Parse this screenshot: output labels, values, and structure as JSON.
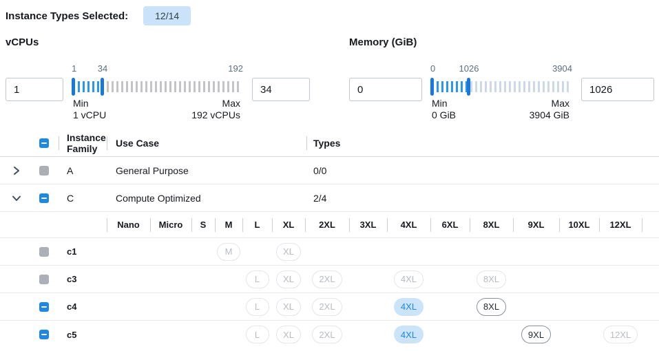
{
  "colors": {
    "accent_blue": "#1f87e8",
    "badge_bg": "#cbe3fa",
    "selected_pill_bg": "#cce4f9",
    "disabled_checkbox_gray": "#abafb6",
    "tick_inactive_vcpu": "#c3c3c9",
    "tick_inactive_memory": "#cdd9e9",
    "tick_active": "#2b96ef"
  },
  "topbar": {
    "label": "Instance Types Selected:",
    "badge": "12/14"
  },
  "filters": {
    "vcpus": {
      "title": "vCPUs",
      "min_input": "1",
      "max_input": "34",
      "scale": {
        "low": "1",
        "current": "34",
        "high": "192"
      },
      "min_label": "Min",
      "min_detail": "1 vCPU",
      "max_label": "Max",
      "max_detail": "192 vCPUs"
    },
    "memory": {
      "title": "Memory (GiB)",
      "min_input": "0",
      "max_input": "1026",
      "scale": {
        "low": "0",
        "current": "1026",
        "high": "3904"
      },
      "min_label": "Min",
      "min_detail": "0 GiB",
      "max_label": "Max",
      "max_detail": "3904 GiB"
    }
  },
  "table": {
    "columns": {
      "family": "Instance Family",
      "use_case": "Use Case",
      "types": "Types"
    },
    "header_checkbox": "indeterminate",
    "size_columns": [
      "Nano",
      "Micro",
      "S",
      "M",
      "L",
      "XL",
      "2XL",
      "3XL",
      "4XL",
      "6XL",
      "8XL",
      "9XL",
      "10XL",
      "12XL"
    ],
    "groups": [
      {
        "family": "A",
        "use_case": "General Purpose",
        "types": "0/0",
        "expanded": false,
        "checkbox": "disabled",
        "children": []
      },
      {
        "family": "C",
        "use_case": "Compute Optimized",
        "types": "2/4",
        "expanded": true,
        "checkbox": "indeterminate",
        "children": [
          {
            "name": "c1",
            "checkbox": "disabled",
            "sizes": [
              {
                "size": "M",
                "state": "disabled"
              },
              {
                "size": "XL",
                "state": "disabled"
              }
            ]
          },
          {
            "name": "c3",
            "checkbox": "disabled",
            "sizes": [
              {
                "size": "L",
                "state": "disabled"
              },
              {
                "size": "XL",
                "state": "disabled"
              },
              {
                "size": "2XL",
                "state": "disabled"
              },
              {
                "size": "4XL",
                "state": "disabled"
              },
              {
                "size": "8XL",
                "state": "disabled"
              }
            ]
          },
          {
            "name": "c4",
            "checkbox": "indeterminate",
            "sizes": [
              {
                "size": "L",
                "state": "disabled"
              },
              {
                "size": "XL",
                "state": "disabled"
              },
              {
                "size": "2XL",
                "state": "disabled"
              },
              {
                "size": "4XL",
                "state": "selected"
              },
              {
                "size": "8XL",
                "state": "available"
              }
            ]
          },
          {
            "name": "c5",
            "checkbox": "indeterminate",
            "sizes": [
              {
                "size": "L",
                "state": "disabled"
              },
              {
                "size": "XL",
                "state": "disabled"
              },
              {
                "size": "2XL",
                "state": "disabled"
              },
              {
                "size": "4XL",
                "state": "selected"
              },
              {
                "size": "9XL",
                "state": "available"
              },
              {
                "size": "12XL",
                "state": "disabled"
              }
            ]
          }
        ]
      }
    ]
  }
}
